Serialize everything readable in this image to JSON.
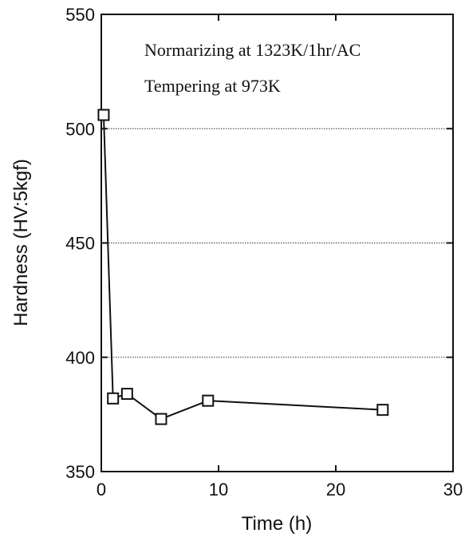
{
  "chart_data": {
    "type": "line",
    "title": "",
    "xlabel": "Time (h)",
    "ylabel": "Hardness (HV:5kgf)",
    "xlim": [
      0,
      30
    ],
    "ylim": [
      350,
      550
    ],
    "xticks": [
      0,
      10,
      20,
      30
    ],
    "yticks": [
      350,
      400,
      450,
      500,
      550
    ],
    "x_tick_labels": [
      "0",
      "10",
      "20",
      "30"
    ],
    "y_tick_labels": [
      "350",
      "400",
      "450",
      "500",
      "550"
    ],
    "grid": {
      "horizontal_dotted_at": [
        400,
        450,
        500
      ]
    },
    "legend": "none",
    "annotations": [
      "Normarizing at 1323K/1hr/AC",
      "Tempering at 973K"
    ],
    "series": [
      {
        "marker": "open-square",
        "x": [
          0.2,
          1.0,
          2.2,
          5.1,
          9.1,
          24.0
        ],
        "y": [
          506,
          382,
          384,
          373,
          381,
          377
        ]
      }
    ]
  }
}
